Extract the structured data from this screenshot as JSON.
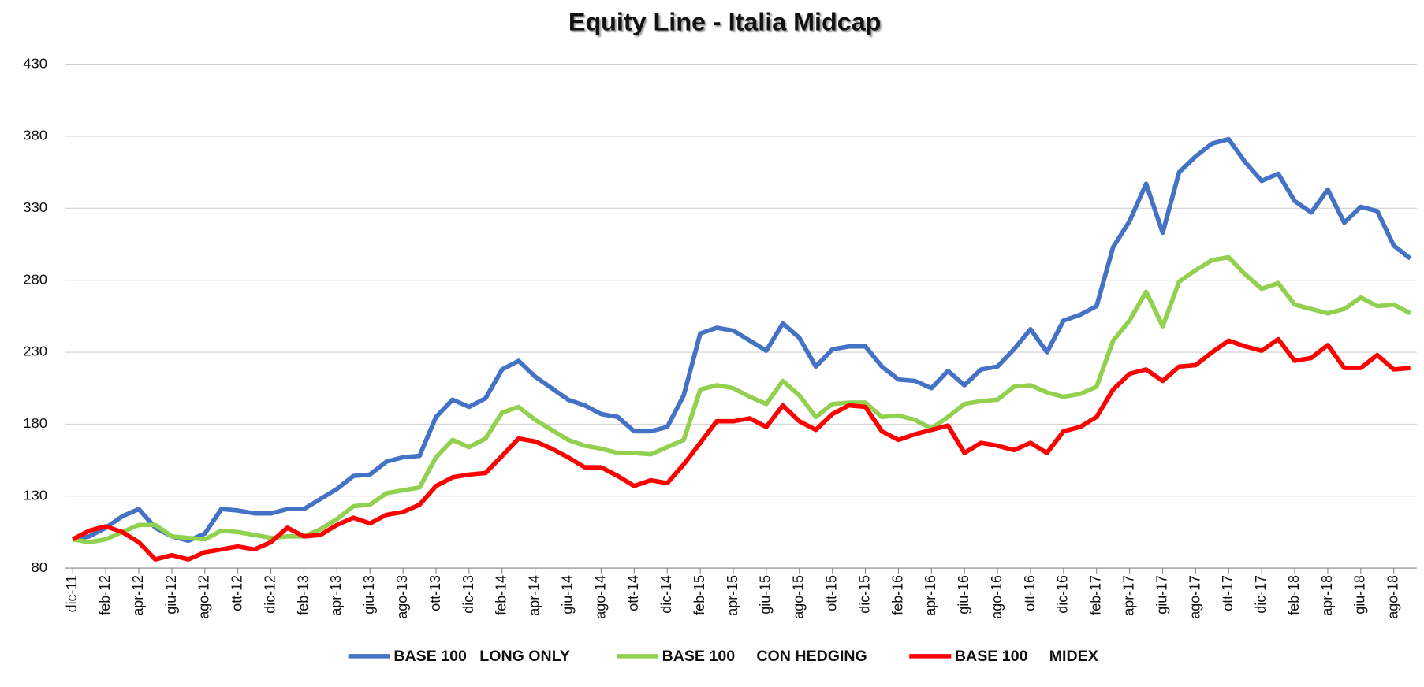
{
  "chart_data": {
    "type": "line",
    "title": "Equity Line - Italia Midcap",
    "categories": [
      "dic-11",
      null,
      "feb-12",
      null,
      "apr-12",
      null,
      "giu-12",
      null,
      "ago-12",
      null,
      "ott-12",
      null,
      "dic-12",
      null,
      "feb-13",
      null,
      "apr-13",
      null,
      "giu-13",
      null,
      "ago-13",
      null,
      "ott-13",
      null,
      "dic-13",
      null,
      "feb-14",
      null,
      "apr-14",
      null,
      "giu-14",
      null,
      "ago-14",
      null,
      "ott-14",
      null,
      "dic-14",
      null,
      "feb-15",
      null,
      "apr-15",
      null,
      "giu-15",
      null,
      "ago-15",
      null,
      "ott-15",
      null,
      "dic-15",
      null,
      "feb-16",
      null,
      "apr-16",
      null,
      "giu-16",
      null,
      "ago-16",
      null,
      "ott-16",
      null,
      "dic-16",
      null,
      "feb-17",
      null,
      "apr-17",
      null,
      "giu-17",
      null,
      "ago-17",
      null,
      "ott-17",
      null,
      "dic-17",
      null,
      "feb-18",
      null,
      "apr-18",
      null,
      "giu-18",
      null,
      "ago-18",
      null
    ],
    "series": [
      {
        "name": "BASE 100   LONG ONLY",
        "color": "#4472c4",
        "values": [
          100,
          102,
          108,
          116,
          121,
          108,
          102,
          99,
          104,
          121,
          120,
          118,
          118,
          121,
          121,
          128,
          135,
          144,
          145,
          154,
          157,
          158,
          185,
          197,
          192,
          198,
          218,
          224,
          213,
          205,
          197,
          193,
          187,
          185,
          175,
          175,
          178,
          200,
          243,
          247,
          245,
          238,
          231,
          250,
          240,
          220,
          232,
          234,
          234,
          220,
          211,
          210,
          205,
          217,
          207,
          218,
          220,
          232,
          246,
          230,
          252,
          256,
          262,
          303,
          321,
          347,
          313,
          355,
          366,
          375,
          378,
          362,
          349,
          354,
          335,
          327,
          343,
          320,
          331,
          328,
          304,
          295
        ]
      },
      {
        "name": "BASE 100     CON HEDGING",
        "color": "#92d050",
        "values": [
          100,
          98,
          100,
          105,
          110,
          110,
          102,
          101,
          100,
          106,
          105,
          103,
          101,
          102,
          102,
          107,
          114,
          123,
          124,
          132,
          134,
          136,
          157,
          169,
          164,
          170,
          188,
          192,
          183,
          176,
          169,
          165,
          163,
          160,
          160,
          159,
          164,
          169,
          204,
          207,
          205,
          199,
          194,
          210,
          200,
          185,
          194,
          195,
          195,
          185,
          186,
          183,
          177,
          185,
          194,
          196,
          197,
          206,
          207,
          202,
          199,
          201,
          206,
          238,
          252,
          272,
          248,
          279,
          287,
          294,
          296,
          284,
          274,
          278,
          263,
          260,
          257,
          260,
          268,
          262,
          263,
          257
        ]
      },
      {
        "name": "BASE 100     MIDEX",
        "color": "#ff0000",
        "values": [
          100,
          106,
          109,
          105,
          98,
          86,
          89,
          86,
          91,
          93,
          95,
          93,
          98,
          108,
          102,
          103,
          110,
          115,
          111,
          117,
          119,
          124,
          137,
          143,
          145,
          146,
          158,
          170,
          168,
          163,
          157,
          150,
          150,
          144,
          137,
          141,
          139,
          152,
          167,
          182,
          182,
          184,
          178,
          193,
          182,
          176,
          187,
          193,
          192,
          175,
          169,
          173,
          176,
          179,
          160,
          167,
          165,
          162,
          167,
          160,
          175,
          178,
          185,
          204,
          215,
          218,
          210,
          220,
          221,
          230,
          238,
          234,
          231,
          239,
          224,
          226,
          235,
          219,
          219,
          228,
          218,
          219
        ]
      }
    ],
    "ylim": [
      80,
      430
    ],
    "yticks": [
      80,
      130,
      180,
      230,
      280,
      330,
      380,
      430
    ],
    "grid": true,
    "legend": "bottom"
  }
}
